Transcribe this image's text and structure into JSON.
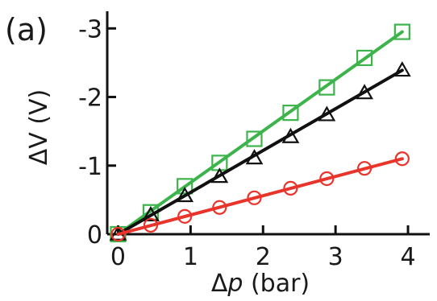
{
  "chart_data": {
    "type": "line",
    "panel_label": "(a)",
    "xlabel": {
      "symbol": "Δ",
      "variable": "p",
      "unit": " (bar)"
    },
    "ylabel": "ΔV (V)",
    "xlim": [
      -0.15,
      4.3
    ],
    "ylim": [
      0,
      -3.25
    ],
    "x_ticks": [
      0,
      1,
      2,
      3,
      4
    ],
    "x_tick_labels": [
      "0",
      "1",
      "2",
      "3",
      "4"
    ],
    "y_ticks": [
      0,
      -1,
      -2,
      -3
    ],
    "y_tick_labels": [
      "0",
      "-1",
      "-2",
      "-3"
    ],
    "grid": false,
    "legend": "none",
    "series": [
      {
        "marker": "square",
        "color": "#3cb44b",
        "x": [
          0,
          0.45,
          0.92,
          1.4,
          1.88,
          2.38,
          2.88,
          3.4,
          3.92
        ],
        "y": [
          0,
          -0.32,
          -0.7,
          -1.04,
          -1.39,
          -1.77,
          -2.14,
          -2.57,
          -2.95
        ],
        "fit_x": [
          0,
          3.92
        ],
        "fit_y": [
          0,
          -2.95
        ]
      },
      {
        "marker": "triangle",
        "color": "#111111",
        "x": [
          0,
          0.45,
          0.92,
          1.4,
          1.88,
          2.38,
          2.88,
          3.4,
          3.92
        ],
        "y": [
          0,
          -0.28,
          -0.56,
          -0.84,
          -1.11,
          -1.42,
          -1.74,
          -2.06,
          -2.39
        ],
        "fit_x": [
          0,
          3.92
        ],
        "fit_y": [
          0,
          -2.39
        ]
      },
      {
        "marker": "circle",
        "color": "#e8342a",
        "x": [
          0,
          0.45,
          0.92,
          1.4,
          1.88,
          2.38,
          2.88,
          3.4,
          3.92
        ],
        "y": [
          0,
          -0.13,
          -0.26,
          -0.39,
          -0.53,
          -0.67,
          -0.81,
          -0.96,
          -1.1
        ],
        "fit_x": [
          0,
          3.92
        ],
        "fit_y": [
          0,
          -1.1
        ]
      }
    ]
  }
}
